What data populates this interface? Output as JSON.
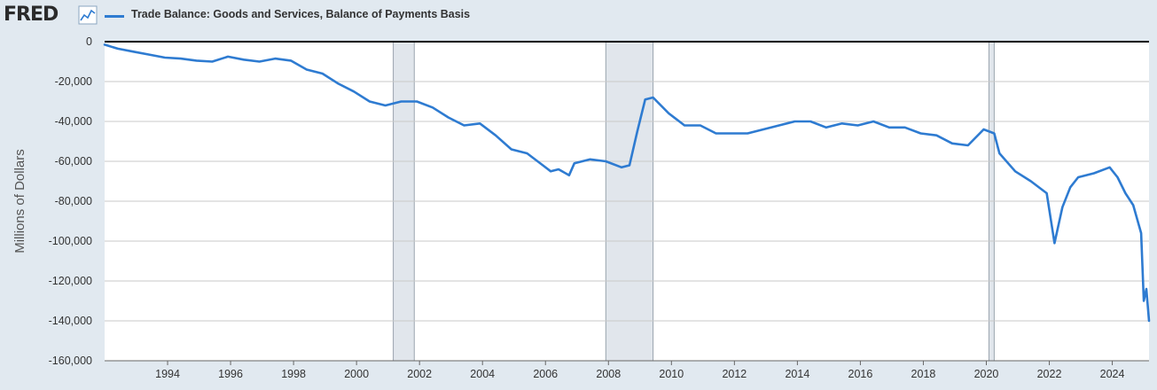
{
  "header": {
    "logo": "FRED",
    "logo_icon": "line-chart-icon"
  },
  "chart_data": {
    "type": "line",
    "ylabel": "Millions of Dollars",
    "ylim": [
      -160000,
      0
    ],
    "xlim": [
      "1992-01",
      "2025-03"
    ],
    "yticks": [
      {
        "value": 0,
        "label": "0"
      },
      {
        "value": -20000,
        "label": "-20,000"
      },
      {
        "value": -40000,
        "label": "-40,000"
      },
      {
        "value": -60000,
        "label": "-60,000"
      },
      {
        "value": -80000,
        "label": "-80,000"
      },
      {
        "value": -100000,
        "label": "-100,000"
      },
      {
        "value": -120000,
        "label": "-120,000"
      },
      {
        "value": -140000,
        "label": "-140,000"
      },
      {
        "value": -160000,
        "label": "-160,000"
      }
    ],
    "xticks": [
      "1994",
      "1996",
      "1998",
      "2000",
      "2002",
      "2004",
      "2006",
      "2008",
      "2010",
      "2012",
      "2014",
      "2016",
      "2018",
      "2020",
      "2022",
      "2024"
    ],
    "grid": true,
    "recessions": [
      {
        "start": "2001-03",
        "end": "2001-11"
      },
      {
        "start": "2007-12",
        "end": "2009-06"
      },
      {
        "start": "2020-02",
        "end": "2020-04"
      }
    ],
    "series": [
      {
        "name": "Trade Balance: Goods and Services, Balance of Payments Basis",
        "color": "#2e7bd1",
        "points": [
          [
            "1992-01",
            -1500
          ],
          [
            "1992-06",
            -3500
          ],
          [
            "1992-12",
            -5000
          ],
          [
            "1993-06",
            -6500
          ],
          [
            "1993-12",
            -8000
          ],
          [
            "1994-06",
            -8500
          ],
          [
            "1994-12",
            -9500
          ],
          [
            "1995-06",
            -10000
          ],
          [
            "1995-12",
            -7500
          ],
          [
            "1996-06",
            -9000
          ],
          [
            "1996-12",
            -10000
          ],
          [
            "1997-06",
            -8500
          ],
          [
            "1997-12",
            -9500
          ],
          [
            "1998-06",
            -14000
          ],
          [
            "1998-12",
            -16000
          ],
          [
            "1999-06",
            -21000
          ],
          [
            "1999-12",
            -25000
          ],
          [
            "2000-06",
            -30000
          ],
          [
            "2000-12",
            -32000
          ],
          [
            "2001-06",
            -30000
          ],
          [
            "2001-12",
            -30000
          ],
          [
            "2002-06",
            -33000
          ],
          [
            "2002-12",
            -38000
          ],
          [
            "2003-06",
            -42000
          ],
          [
            "2003-12",
            -41000
          ],
          [
            "2004-06",
            -47000
          ],
          [
            "2004-12",
            -54000
          ],
          [
            "2005-06",
            -56000
          ],
          [
            "2005-12",
            -62000
          ],
          [
            "2006-03",
            -65000
          ],
          [
            "2006-06",
            -64000
          ],
          [
            "2006-10",
            -67000
          ],
          [
            "2006-12",
            -61000
          ],
          [
            "2007-06",
            -59000
          ],
          [
            "2007-12",
            -60000
          ],
          [
            "2008-06",
            -63000
          ],
          [
            "2008-09",
            -62000
          ],
          [
            "2008-12",
            -45000
          ],
          [
            "2009-03",
            -29000
          ],
          [
            "2009-06",
            -28000
          ],
          [
            "2009-12",
            -36000
          ],
          [
            "2010-06",
            -42000
          ],
          [
            "2010-12",
            -42000
          ],
          [
            "2011-06",
            -46000
          ],
          [
            "2011-12",
            -46000
          ],
          [
            "2012-06",
            -46000
          ],
          [
            "2012-12",
            -44000
          ],
          [
            "2013-06",
            -42000
          ],
          [
            "2013-12",
            -40000
          ],
          [
            "2014-06",
            -40000
          ],
          [
            "2014-12",
            -43000
          ],
          [
            "2015-06",
            -41000
          ],
          [
            "2015-12",
            -42000
          ],
          [
            "2016-06",
            -40000
          ],
          [
            "2016-12",
            -43000
          ],
          [
            "2017-06",
            -43000
          ],
          [
            "2017-12",
            -46000
          ],
          [
            "2018-06",
            -47000
          ],
          [
            "2018-12",
            -51000
          ],
          [
            "2019-06",
            -52000
          ],
          [
            "2019-12",
            -44000
          ],
          [
            "2020-04",
            -46000
          ],
          [
            "2020-06",
            -56000
          ],
          [
            "2020-12",
            -65000
          ],
          [
            "2021-06",
            -70000
          ],
          [
            "2021-12",
            -76000
          ],
          [
            "2022-03",
            -101000
          ],
          [
            "2022-06",
            -83000
          ],
          [
            "2022-09",
            -73000
          ],
          [
            "2022-12",
            -68000
          ],
          [
            "2023-06",
            -66000
          ],
          [
            "2023-12",
            -63000
          ],
          [
            "2024-03",
            -68000
          ],
          [
            "2024-06",
            -76000
          ],
          [
            "2024-09",
            -82000
          ],
          [
            "2024-12",
            -96000
          ],
          [
            "2025-01",
            -130000
          ],
          [
            "2025-02",
            -124000
          ],
          [
            "2025-03",
            -140000
          ]
        ]
      }
    ]
  }
}
